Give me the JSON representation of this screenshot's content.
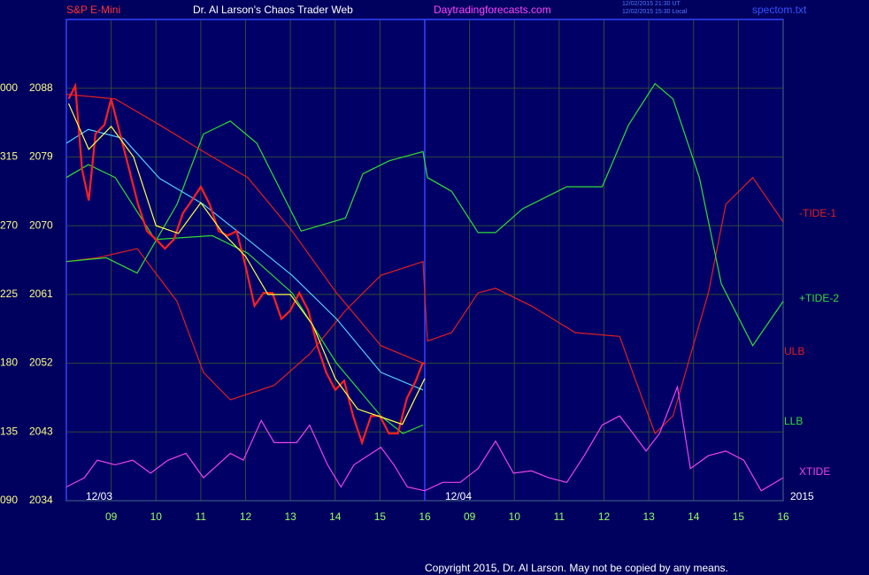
{
  "header": {
    "left": "S&P E-Mini",
    "center": "Dr. Al Larson's Chaos Trader Web",
    "site": "Daytradingforecasts.com",
    "stamp1": "12/02/2015 21:30 UT",
    "stamp2": "12/02/2015 15:30 Local",
    "file": "spectom.txt"
  },
  "footer": "Copyright 2015, Dr. Al Larson. May not be copied by any means.",
  "chart_data": {
    "type": "line",
    "xlim": [
      8,
      24
    ],
    "ylim": [
      2034,
      2097
    ],
    "yticks": [
      2034,
      2043,
      2052,
      2061,
      2070,
      2079,
      2088
    ],
    "left_labels": [
      "090",
      "135",
      "180",
      "225",
      "270",
      "315",
      "000"
    ],
    "xticks": [
      {
        "value": 9,
        "label": "09"
      },
      10,
      11,
      12,
      13,
      14,
      15,
      16,
      {
        "value": 17,
        "label": "09"
      },
      {
        "value": 18,
        "label": "10"
      },
      {
        "value": 19,
        "label": "11"
      },
      {
        "value": 20,
        "label": "12"
      },
      {
        "value": 21,
        "label": "13"
      },
      {
        "value": 22,
        "label": "14"
      },
      {
        "value": 23,
        "label": "15"
      },
      {
        "value": 24,
        "label": "16"
      }
    ],
    "day_labels": [
      "12/03",
      "12/04",
      "2015"
    ],
    "grid": true,
    "series": [
      {
        "name": "-TIDE-1",
        "color": "#e02020",
        "x": [
          8.0,
          8.69,
          9.58,
          10.47,
          11.06,
          11.66,
          12.64,
          13.43,
          14.23,
          15.02,
          15.96,
          16.06,
          16.6,
          17.19,
          17.58,
          18.38,
          19.36,
          20.35,
          21.14,
          21.54,
          22.33,
          22.72,
          23.32,
          24.0
        ],
        "values": [
          2065.3,
          2065.8,
          2067.0,
          2060.1,
          2050.8,
          2047.2,
          2049.1,
          2053.2,
          2058.9,
          2063.5,
          2065.3,
          2054.9,
          2056.0,
          2061.2,
          2061.8,
          2059.5,
          2056.0,
          2055.5,
          2042.8,
          2045.1,
          2061.2,
          2072.8,
          2076.3,
          2070.5
        ]
      },
      {
        "name": "+TIDE-2",
        "color": "#33dd33",
        "x": [
          8.0,
          8.89,
          9.58,
          10.47,
          11.06,
          11.66,
          12.25,
          13.24,
          14.23,
          14.62,
          15.21,
          15.96,
          16.06,
          16.6,
          17.19,
          17.58,
          18.18,
          19.17,
          19.96,
          20.55,
          21.14,
          21.54,
          22.13,
          22.62,
          23.32,
          24.0
        ],
        "values": [
          2065.3,
          2065.8,
          2063.8,
          2072.8,
          2082.0,
          2083.7,
          2080.8,
          2069.3,
          2071.0,
          2076.8,
          2078.5,
          2079.7,
          2076.3,
          2074.5,
          2069.1,
          2069.1,
          2072.2,
          2075.1,
          2075.1,
          2083.2,
          2088.6,
          2086.6,
          2076.3,
          2062.4,
          2054.3,
          2060.1
        ]
      },
      {
        "name": "ULB",
        "color": "#e02020",
        "x": [
          8.0,
          9.09,
          10.08,
          11.06,
          12.05,
          13.04,
          14.03,
          15.02,
          15.96
        ],
        "values": [
          2087.2,
          2086.6,
          2083.2,
          2079.7,
          2076.3,
          2069.3,
          2061.2,
          2054.3,
          2052.0
        ]
      },
      {
        "name": "LLB",
        "color": "#33dd33",
        "x": [
          8.0,
          8.49,
          9.09,
          9.98,
          11.26,
          12.05,
          13.04,
          14.03,
          15.02,
          15.51,
          15.96
        ],
        "values": [
          2076.3,
          2078.0,
          2076.3,
          2068.2,
          2068.7,
          2066.4,
          2061.2,
          2052.0,
          2045.1,
          2042.8,
          2043.9
        ]
      },
      {
        "name": "XTIDE",
        "color": "#ee44ee",
        "x": [
          8.0,
          8.4,
          8.69,
          9.09,
          9.48,
          9.88,
          10.27,
          10.67,
          11.06,
          11.66,
          11.95,
          12.35,
          12.64,
          13.14,
          13.43,
          13.83,
          14.13,
          14.42,
          15.02,
          15.31,
          15.61,
          16.0,
          16.4,
          16.79,
          17.19,
          17.58,
          17.98,
          18.38,
          18.77,
          19.17,
          19.56,
          19.96,
          20.35,
          20.65,
          20.94,
          21.24,
          21.64,
          21.93,
          22.33,
          22.72,
          23.12,
          23.51,
          24.0
        ],
        "values": [
          2035.8,
          2037.0,
          2039.3,
          2038.7,
          2039.3,
          2037.6,
          2039.3,
          2040.2,
          2037.0,
          2040.2,
          2039.3,
          2044.5,
          2041.6,
          2041.6,
          2043.9,
          2038.7,
          2035.8,
          2038.7,
          2041.0,
          2038.7,
          2035.8,
          2035.3,
          2036.4,
          2036.4,
          2038.2,
          2041.8,
          2037.6,
          2037.9,
          2037.0,
          2036.4,
          2039.9,
          2043.9,
          2045.1,
          2042.8,
          2040.5,
          2042.8,
          2048.9,
          2038.2,
          2039.9,
          2040.5,
          2039.3,
          2035.3,
          2037.0
        ]
      },
      {
        "color": "#55ccff",
        "x": [
          8.0,
          8.49,
          9.28,
          10.08,
          11.06,
          12.05,
          13.04,
          14.03,
          15.02,
          15.96
        ],
        "values": [
          2080.8,
          2082.6,
          2081.4,
          2076.2,
          2072.8,
          2068.2,
          2063.5,
          2057.8,
          2050.8,
          2048.5
        ]
      },
      {
        "color": "#ff2020",
        "x": [
          8.05,
          8.2,
          8.35,
          8.5,
          8.65,
          8.85,
          9.0,
          9.2,
          9.4,
          9.6,
          9.8,
          10.0,
          10.2,
          10.4,
          10.6,
          10.8,
          11.0,
          11.2,
          11.4,
          11.6,
          11.8,
          12.0,
          12.2,
          12.4,
          12.6,
          12.8,
          13.0,
          13.2,
          13.4,
          13.6,
          13.8,
          14.0,
          14.2,
          14.4,
          14.6,
          14.8,
          15.0,
          15.2,
          15.4,
          15.6,
          15.8,
          15.95,
          16.0
        ],
        "values": [
          2086.6,
          2088.3,
          2077.4,
          2073.3,
          2082.0,
          2083.2,
          2086.6,
          2082.0,
          2077.4,
          2072.8,
          2069.3,
          2068.2,
          2067.0,
          2068.2,
          2071.6,
          2073.3,
          2075.1,
          2072.8,
          2069.3,
          2068.7,
          2069.3,
          2064.7,
          2059.5,
          2061.2,
          2061.2,
          2057.8,
          2058.9,
          2061.2,
          2058.9,
          2054.3,
          2050.8,
          2048.5,
          2049.7,
          2045.1,
          2041.6,
          2045.1,
          2045.1,
          2042.8,
          2042.8,
          2047.4,
          2049.7,
          2052.0,
          2052.0
        ]
      },
      {
        "color": "#ffff44",
        "x": [
          8.05,
          8.5,
          9.0,
          9.5,
          10.0,
          10.5,
          11.0,
          11.5,
          12.0,
          12.5,
          13.0,
          13.5,
          14.0,
          14.5,
          15.0,
          15.5,
          16.0
        ],
        "values": [
          2086,
          2080,
          2083,
          2079,
          2070,
          2069,
          2073,
          2069,
          2066,
          2061,
          2061,
          2057,
          2050,
          2046,
          2045,
          2044,
          2050
        ]
      }
    ]
  }
}
